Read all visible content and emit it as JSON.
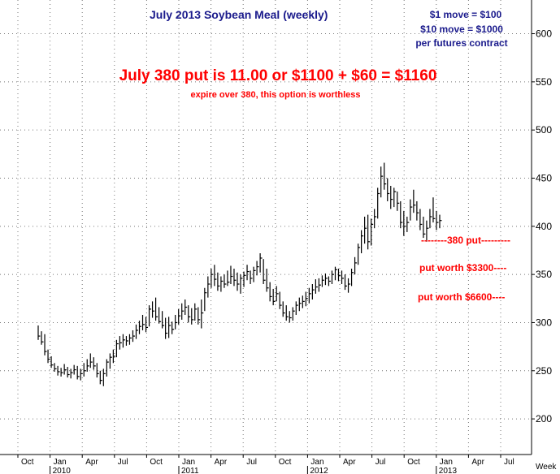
{
  "chart_data": {
    "type": "bar",
    "bar_style": "ohlc-weekly",
    "title": "July 2013 Soybean Meal (weekly)",
    "y_ticks": [
      200,
      250,
      300,
      350,
      400,
      450,
      500,
      550,
      600
    ],
    "ylim": [
      163,
      635
    ],
    "y_axis_side": "right",
    "grid": "dotted",
    "x_month_labels": [
      "Oct",
      "Jan",
      "Apr",
      "Jul",
      "Oct",
      "Jan",
      "Apr",
      "Jul",
      "Oct",
      "Jan",
      "Apr",
      "Jul",
      "Oct",
      "Jan",
      "Apr",
      "Jul"
    ],
    "x_year_labels": [
      "2010",
      "2011",
      "2012",
      "2013"
    ],
    "x_unit_label": "Week",
    "notes": [
      "$1 move = $100",
      "$10 move = $1000",
      "per futures contract"
    ],
    "headline": "July 380 put is 11.00 or $1100 + $60 = $1160",
    "subheadline": "expire over 380, this option is worthless",
    "annotations": [
      "--------380 put---------",
      "put worth $3300----",
      "put worth $6600----"
    ],
    "series": [
      {
        "values": [
          [
            297,
            282,
            286
          ],
          [
            291,
            277,
            280
          ],
          [
            288,
            266,
            270
          ],
          [
            272,
            258,
            262
          ],
          [
            265,
            253,
            256
          ],
          [
            258,
            249,
            252
          ],
          [
            255,
            245,
            249
          ],
          [
            253,
            244,
            248
          ],
          [
            257,
            246,
            251
          ],
          [
            254,
            243,
            246
          ],
          [
            252,
            242,
            248
          ],
          [
            256,
            246,
            251
          ],
          [
            255,
            241,
            244
          ],
          [
            252,
            240,
            247
          ],
          [
            258,
            244,
            250
          ],
          [
            262,
            249,
            255
          ],
          [
            268,
            253,
            259
          ],
          [
            264,
            251,
            255
          ],
          [
            258,
            243,
            247
          ],
          [
            250,
            236,
            240
          ],
          [
            252,
            234,
            247
          ],
          [
            262,
            244,
            259
          ],
          [
            268,
            252,
            264
          ],
          [
            272,
            258,
            265
          ],
          [
            282,
            264,
            278
          ],
          [
            286,
            272,
            279
          ],
          [
            288,
            274,
            282
          ],
          [
            286,
            276,
            281
          ],
          [
            288,
            277,
            284
          ],
          [
            292,
            280,
            286
          ],
          [
            298,
            283,
            292
          ],
          [
            302,
            288,
            296
          ],
          [
            308,
            292,
            298
          ],
          [
            306,
            290,
            295
          ],
          [
            318,
            296,
            314
          ],
          [
            322,
            305,
            312
          ],
          [
            326,
            302,
            306
          ],
          [
            316,
            299,
            301
          ],
          [
            312,
            294,
            297
          ],
          [
            305,
            283,
            289
          ],
          [
            306,
            284,
            297
          ],
          [
            301,
            288,
            293
          ],
          [
            308,
            293,
            300
          ],
          [
            314,
            298,
            307
          ],
          [
            320,
            303,
            312
          ],
          [
            324,
            308,
            316
          ],
          [
            318,
            300,
            306
          ],
          [
            315,
            298,
            303
          ],
          [
            320,
            302,
            314
          ],
          [
            316,
            298,
            303
          ],
          [
            324,
            294,
            310
          ],
          [
            336,
            312,
            331
          ],
          [
            348,
            326,
            340
          ],
          [
            356,
            336,
            350
          ],
          [
            360,
            338,
            345
          ],
          [
            352,
            333,
            338
          ],
          [
            348,
            332,
            343
          ],
          [
            350,
            336,
            340
          ],
          [
            354,
            338,
            342
          ],
          [
            359,
            340,
            348
          ],
          [
            356,
            338,
            344
          ],
          [
            352,
            333,
            340
          ],
          [
            350,
            330,
            346
          ],
          [
            353,
            337,
            349
          ],
          [
            360,
            344,
            353
          ],
          [
            354,
            340,
            346
          ],
          [
            358,
            342,
            354
          ],
          [
            364,
            349,
            358
          ],
          [
            372,
            352,
            367
          ],
          [
            366,
            340,
            344
          ],
          [
            356,
            332,
            336
          ],
          [
            342,
            322,
            327
          ],
          [
            335,
            318,
            322
          ],
          [
            338,
            322,
            330
          ],
          [
            332,
            314,
            318
          ],
          [
            322,
            306,
            310
          ],
          [
            318,
            302,
            306
          ],
          [
            312,
            300,
            305
          ],
          [
            316,
            302,
            312
          ],
          [
            322,
            308,
            318
          ],
          [
            326,
            312,
            320
          ],
          [
            328,
            315,
            322
          ],
          [
            332,
            317,
            325
          ],
          [
            336,
            320,
            330
          ],
          [
            340,
            324,
            334
          ],
          [
            345,
            330,
            337
          ],
          [
            346,
            332,
            339
          ],
          [
            349,
            337,
            344
          ],
          [
            351,
            339,
            346
          ],
          [
            348,
            338,
            343
          ],
          [
            354,
            340,
            350
          ],
          [
            358,
            344,
            355
          ],
          [
            356,
            343,
            349
          ],
          [
            354,
            340,
            346
          ],
          [
            350,
            334,
            338
          ],
          [
            346,
            331,
            340
          ],
          [
            356,
            338,
            352
          ],
          [
            368,
            350,
            362
          ],
          [
            382,
            360,
            378
          ],
          [
            396,
            372,
            390
          ],
          [
            410,
            382,
            398
          ],
          [
            412,
            376,
            384
          ],
          [
            408,
            380,
            402
          ],
          [
            418,
            398,
            410
          ],
          [
            440,
            408,
            434
          ],
          [
            462,
            430,
            452
          ],
          [
            466,
            438,
            444
          ],
          [
            450,
            426,
            434
          ],
          [
            442,
            418,
            428
          ],
          [
            440,
            420,
            436
          ],
          [
            436,
            416,
            424
          ],
          [
            426,
            398,
            404
          ],
          [
            416,
            390,
            400
          ],
          [
            410,
            394,
            404
          ],
          [
            428,
            406,
            420
          ],
          [
            438,
            414,
            422
          ],
          [
            426,
            406,
            414
          ],
          [
            418,
            396,
            402
          ],
          [
            410,
            388,
            392
          ],
          [
            406,
            384,
            398
          ],
          [
            418,
            398,
            410
          ],
          [
            430,
            404,
            408
          ],
          [
            416,
            396,
            404
          ],
          [
            412,
            398,
            406
          ]
        ]
      }
    ]
  }
}
